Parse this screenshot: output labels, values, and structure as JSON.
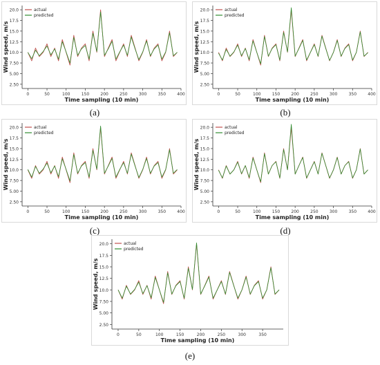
{
  "figure": {
    "captions": [
      "(a)",
      "(b)",
      "(c)",
      "(d)",
      "(e)"
    ]
  },
  "colors": {
    "actual": "#c0504d",
    "predicted": "#2e8b2e",
    "axis": "#333333",
    "frame": "#d9d9d9"
  },
  "chart_data": [
    {
      "type": "line",
      "panel": "(a)",
      "xlabel": "Time sampling (10 min)",
      "ylabel": "Wind speed, m/s",
      "xlim": [
        -15,
        400
      ],
      "ylim": [
        1.5,
        21
      ],
      "xticks": [
        0,
        50,
        100,
        150,
        200,
        250,
        300,
        350,
        400
      ],
      "yticks": [
        2.5,
        5.0,
        7.5,
        10.0,
        12.5,
        15.0,
        17.5,
        20.0
      ],
      "ytick_labels": [
        "2.50",
        "5.00",
        "7.50",
        "10.0",
        "12.5",
        "15.0",
        "17.5",
        "20.0"
      ],
      "legend_position": "upper-left",
      "series": [
        {
          "name": "actual",
          "x": [
            0,
            10,
            20,
            30,
            40,
            50,
            60,
            70,
            80,
            90,
            100,
            110,
            120,
            130,
            140,
            150,
            160,
            170,
            180,
            190,
            200,
            210,
            220,
            230,
            240,
            250,
            260,
            270,
            280,
            290,
            300,
            310,
            320,
            330,
            340,
            350,
            360,
            370,
            380,
            390
          ],
          "y": [
            10,
            8,
            11,
            9,
            10,
            12,
            9,
            11,
            8,
            13,
            10,
            7,
            14,
            9,
            11,
            12,
            8,
            15,
            10,
            20,
            9,
            11,
            13,
            8,
            10,
            12,
            9,
            14,
            11,
            8,
            10,
            13,
            9,
            11,
            12,
            8,
            10,
            15,
            9,
            10
          ]
        },
        {
          "name": "predicted",
          "x": [
            0,
            10,
            20,
            30,
            40,
            50,
            60,
            70,
            80,
            90,
            100,
            110,
            120,
            130,
            140,
            150,
            160,
            170,
            180,
            190,
            200,
            210,
            220,
            230,
            240,
            250,
            260,
            270,
            280,
            290,
            300,
            310,
            320,
            330,
            340,
            350,
            360,
            370,
            380,
            390
          ],
          "y": [
            10,
            8.5,
            10.5,
            9.2,
            10.2,
            11.5,
            9.4,
            10.8,
            8.4,
            12.5,
            10.1,
            7.5,
            13.5,
            9.3,
            10.8,
            11.6,
            8.4,
            14.5,
            10.2,
            19.5,
            9.3,
            10.8,
            12.6,
            8.4,
            10.1,
            11.7,
            9.3,
            13.6,
            10.8,
            8.3,
            10.1,
            12.7,
            9.2,
            10.8,
            11.7,
            8.4,
            10.1,
            14.6,
            9.2,
            10
          ]
        }
      ]
    },
    {
      "type": "line",
      "panel": "(b)",
      "xlabel": "Time sampling (10 min)",
      "ylabel": "Wind speed, m/s",
      "xlim": [
        -15,
        400
      ],
      "ylim": [
        1.5,
        21
      ],
      "xticks": [
        0,
        50,
        100,
        150,
        200,
        250,
        300,
        350,
        400
      ],
      "yticks": [
        2.5,
        5.0,
        7.5,
        10.0,
        12.5,
        15.0,
        17.5,
        20.0
      ],
      "ytick_labels": [
        "2.50",
        "5.00",
        "7.50",
        "10.0",
        "12.5",
        "15.0",
        "17.5",
        "20.0"
      ],
      "legend_position": "upper-left",
      "series": [
        {
          "name": "actual",
          "x": [
            0,
            10,
            20,
            30,
            40,
            50,
            60,
            70,
            80,
            90,
            100,
            110,
            120,
            130,
            140,
            150,
            160,
            170,
            180,
            190,
            200,
            210,
            220,
            230,
            240,
            250,
            260,
            270,
            280,
            290,
            300,
            310,
            320,
            330,
            340,
            350,
            360,
            370,
            380,
            390
          ],
          "y": [
            10,
            8,
            11,
            9,
            10,
            12,
            9,
            11,
            8,
            13,
            10,
            7,
            14,
            9,
            11,
            12,
            8,
            15,
            10,
            20,
            9,
            11,
            13,
            8,
            10,
            12,
            9,
            14,
            11,
            8,
            10,
            13,
            9,
            11,
            12,
            8,
            10,
            15,
            9,
            10
          ]
        },
        {
          "name": "predicted",
          "x": [
            0,
            10,
            20,
            30,
            40,
            50,
            60,
            70,
            80,
            90,
            100,
            110,
            120,
            130,
            140,
            150,
            160,
            170,
            180,
            190,
            200,
            210,
            220,
            230,
            240,
            250,
            260,
            270,
            280,
            290,
            300,
            310,
            320,
            330,
            340,
            350,
            360,
            370,
            380,
            390
          ],
          "y": [
            9.8,
            8.2,
            10.7,
            9.1,
            10.1,
            11.7,
            9.2,
            10.9,
            8.3,
            12.7,
            10.0,
            7.3,
            13.7,
            9.1,
            10.9,
            11.8,
            8.2,
            14.7,
            10.1,
            20.5,
            9.1,
            10.9,
            12.8,
            8.2,
            10.0,
            11.8,
            9.1,
            13.8,
            10.9,
            8.1,
            10.0,
            12.8,
            9.1,
            10.9,
            11.8,
            8.2,
            10.0,
            14.8,
            9.1,
            9.9
          ]
        }
      ]
    },
    {
      "type": "line",
      "panel": "(c)",
      "xlabel": "Time sampling (10 min)",
      "ylabel": "Wind speed, m/s",
      "xlim": [
        -15,
        400
      ],
      "ylim": [
        1.5,
        21
      ],
      "xticks": [
        0,
        50,
        100,
        150,
        200,
        250,
        300,
        350,
        400
      ],
      "yticks": [
        2.5,
        5.0,
        7.5,
        10.0,
        12.5,
        15.0,
        17.5,
        20.0
      ],
      "ytick_labels": [
        "2.50",
        "5.00",
        "7.50",
        "10.0",
        "12.5",
        "15.0",
        "17.5",
        "20.0"
      ],
      "legend_position": "upper-left",
      "series": [
        {
          "name": "actual",
          "x": [
            0,
            10,
            20,
            30,
            40,
            50,
            60,
            70,
            80,
            90,
            100,
            110,
            120,
            130,
            140,
            150,
            160,
            170,
            180,
            190,
            200,
            210,
            220,
            230,
            240,
            250,
            260,
            270,
            280,
            290,
            300,
            310,
            320,
            330,
            340,
            350,
            360,
            370,
            380,
            390
          ],
          "y": [
            10,
            8,
            11,
            9,
            10,
            12,
            9,
            11,
            8,
            13,
            10,
            7,
            14,
            9,
            11,
            12,
            8,
            15,
            10,
            20,
            9,
            11,
            13,
            8,
            10,
            12,
            9,
            14,
            11,
            8,
            10,
            13,
            9,
            11,
            12,
            8,
            10,
            15,
            9,
            10
          ]
        },
        {
          "name": "predicted",
          "x": [
            0,
            10,
            20,
            30,
            40,
            50,
            60,
            70,
            80,
            90,
            100,
            110,
            120,
            130,
            140,
            150,
            160,
            170,
            180,
            190,
            200,
            210,
            220,
            230,
            240,
            250,
            260,
            270,
            280,
            290,
            300,
            310,
            320,
            330,
            340,
            350,
            360,
            370,
            380,
            390
          ],
          "y": [
            10.1,
            8.3,
            10.8,
            9.2,
            10.2,
            11.6,
            9.3,
            10.9,
            8.4,
            12.6,
            10.1,
            7.4,
            13.6,
            9.2,
            10.9,
            11.7,
            8.3,
            14.6,
            10.2,
            20.3,
            9.2,
            10.9,
            12.7,
            8.3,
            10.1,
            11.7,
            9.2,
            13.7,
            10.9,
            8.2,
            10.1,
            12.7,
            9.2,
            10.9,
            11.7,
            8.3,
            10.1,
            14.7,
            9.2,
            10.1
          ]
        }
      ]
    },
    {
      "type": "line",
      "panel": "(d)",
      "xlabel": "Time sampling (10 min)",
      "ylabel": "Wind speed, m/s",
      "xlim": [
        -15,
        400
      ],
      "ylim": [
        1.5,
        21
      ],
      "xticks": [
        0,
        50,
        100,
        150,
        200,
        250,
        300,
        350,
        400
      ],
      "yticks": [
        2.5,
        5.0,
        7.5,
        10.0,
        12.5,
        15.0,
        17.5,
        20.0
      ],
      "ytick_labels": [
        "2.50",
        "5.00",
        "7.50",
        "10.0",
        "12.5",
        "15.0",
        "17.5",
        "20.0"
      ],
      "legend_position": "upper-left",
      "series": [
        {
          "name": "actual",
          "x": [
            0,
            10,
            20,
            30,
            40,
            50,
            60,
            70,
            80,
            90,
            100,
            110,
            120,
            130,
            140,
            150,
            160,
            170,
            180,
            190,
            200,
            210,
            220,
            230,
            240,
            250,
            260,
            270,
            280,
            290,
            300,
            310,
            320,
            330,
            340,
            350,
            360,
            370,
            380,
            390
          ],
          "y": [
            10,
            8,
            11,
            9,
            10,
            12,
            9,
            11,
            8,
            13,
            10,
            7,
            14,
            9,
            11,
            12,
            8,
            15,
            10,
            20,
            9,
            11,
            13,
            8,
            10,
            12,
            9,
            14,
            11,
            8,
            10,
            13,
            9,
            11,
            12,
            8,
            10,
            15,
            9,
            10
          ]
        },
        {
          "name": "predicted",
          "x": [
            0,
            10,
            20,
            30,
            40,
            50,
            60,
            70,
            80,
            90,
            100,
            110,
            120,
            130,
            140,
            150,
            160,
            170,
            180,
            190,
            200,
            210,
            220,
            230,
            240,
            250,
            260,
            270,
            280,
            290,
            300,
            310,
            320,
            330,
            340,
            350,
            360,
            370,
            380,
            390
          ],
          "y": [
            9.9,
            8.1,
            10.9,
            9.0,
            10.0,
            11.8,
            9.1,
            11.0,
            8.2,
            12.8,
            10.0,
            7.2,
            13.8,
            9.0,
            11.0,
            11.9,
            8.1,
            14.8,
            10.0,
            20.7,
            9.0,
            11.0,
            12.9,
            8.1,
            10.0,
            11.9,
            9.0,
            13.9,
            11.0,
            8.1,
            10.0,
            12.9,
            9.0,
            11.0,
            11.9,
            8.1,
            10.0,
            14.9,
            9.0,
            10.0
          ]
        }
      ]
    },
    {
      "type": "line",
      "panel": "(e)",
      "xlabel": "Time sampling (10 min)",
      "ylabel": "Wind speed, m/s",
      "xlim": [
        -15,
        400
      ],
      "ylim": [
        1.5,
        21
      ],
      "xticks": [
        0,
        50,
        100,
        150,
        200,
        250,
        300,
        350
      ],
      "yticks": [
        2.5,
        5.0,
        7.5,
        10.0,
        12.5,
        15.0,
        17.5,
        20.0
      ],
      "ytick_labels": [
        "2.50",
        "5.00",
        "7.50",
        "10.0",
        "12.5",
        "15.0",
        "17.5",
        "20.0"
      ],
      "legend_position": "upper-left",
      "series": [
        {
          "name": "actual",
          "x": [
            0,
            10,
            20,
            30,
            40,
            50,
            60,
            70,
            80,
            90,
            100,
            110,
            120,
            130,
            140,
            150,
            160,
            170,
            180,
            190,
            200,
            210,
            220,
            230,
            240,
            250,
            260,
            270,
            280,
            290,
            300,
            310,
            320,
            330,
            340,
            350,
            360,
            370,
            380,
            390
          ],
          "y": [
            10,
            8,
            11,
            9,
            10,
            12,
            9,
            11,
            8,
            13,
            10,
            7,
            14,
            9,
            11,
            12,
            8,
            15,
            10,
            20,
            9,
            11,
            13,
            8,
            10,
            12,
            9,
            14,
            11,
            8,
            10,
            13,
            9,
            11,
            12,
            8,
            10,
            15,
            9,
            10
          ]
        },
        {
          "name": "predicted",
          "x": [
            0,
            10,
            20,
            30,
            40,
            50,
            60,
            70,
            80,
            90,
            100,
            110,
            120,
            130,
            140,
            150,
            160,
            170,
            180,
            190,
            200,
            210,
            220,
            230,
            240,
            250,
            260,
            270,
            280,
            290,
            300,
            310,
            320,
            330,
            340,
            350,
            360,
            370,
            380,
            390
          ],
          "y": [
            10.0,
            8.2,
            10.8,
            9.1,
            10.1,
            11.7,
            9.2,
            10.9,
            8.3,
            12.7,
            10.0,
            7.3,
            13.7,
            9.1,
            10.9,
            11.8,
            8.2,
            14.7,
            10.1,
            20.2,
            9.1,
            10.9,
            12.8,
            8.2,
            10.0,
            11.8,
            9.1,
            13.8,
            10.9,
            8.2,
            10.0,
            12.8,
            9.1,
            10.9,
            11.8,
            8.2,
            10.0,
            14.8,
            9.1,
            10.0
          ]
        }
      ]
    }
  ]
}
